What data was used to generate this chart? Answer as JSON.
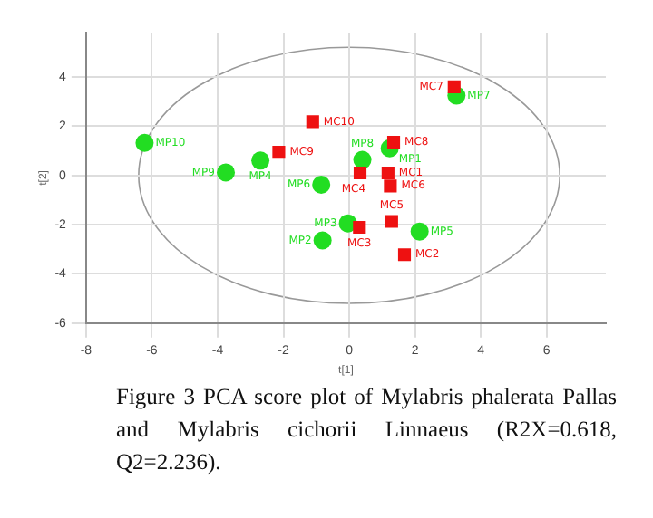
{
  "chart_data": {
    "type": "scatter",
    "xlabel": "t[1]",
    "ylabel": "t[2]",
    "xlim": [
      -8,
      7.8
    ],
    "xticks": [
      -8,
      -6,
      -4,
      -2,
      0,
      2,
      4,
      6
    ],
    "ylim": [
      -6,
      5.8
    ],
    "yticks": [
      -6,
      -4,
      -2,
      0,
      2,
      4
    ],
    "grid": true,
    "legend": false,
    "series": [
      {
        "color": "#22dd22",
        "marker": "circle",
        "x": [
          -6.22,
          -3.75,
          -2.7,
          0.4,
          1.23,
          3.26,
          -0.85,
          -0.04,
          -0.81,
          2.14
        ],
        "values": [
          1.32,
          0.12,
          0.6,
          0.63,
          1.1,
          3.24,
          -0.38,
          -1.95,
          -2.64,
          -2.28
        ]
      },
      {
        "color": "#ee1111",
        "marker": "square",
        "x": [
          3.19,
          -1.11,
          1.35,
          -2.14,
          0.33,
          1.18,
          1.25,
          1.29,
          0.31,
          1.68
        ],
        "values": [
          3.6,
          2.18,
          1.35,
          0.94,
          0.1,
          0.1,
          -0.43,
          -1.87,
          -2.11,
          -3.22
        ]
      }
    ],
    "annotations": [
      {
        "text": "MP10",
        "x": -6.22,
        "y": 1.32
      },
      {
        "text": "MP9",
        "x": -3.75,
        "y": 0.12
      },
      {
        "text": "MP4",
        "x": -2.7,
        "y": 0.6
      },
      {
        "text": "MP8",
        "x": 0.4,
        "y": 0.63
      },
      {
        "text": "MP1",
        "x": 1.23,
        "y": 1.1
      },
      {
        "text": "MP7",
        "x": 3.26,
        "y": 3.24
      },
      {
        "text": "MP6",
        "x": -0.85,
        "y": -0.38
      },
      {
        "text": "MP3",
        "x": -0.04,
        "y": -1.95
      },
      {
        "text": "MP2",
        "x": -0.81,
        "y": -2.64
      },
      {
        "text": "MP5",
        "x": 2.14,
        "y": -2.28
      },
      {
        "text": "MC7",
        "x": 3.19,
        "y": 3.6
      },
      {
        "text": "MC10",
        "x": -1.11,
        "y": 2.18
      },
      {
        "text": "MC8",
        "x": 1.35,
        "y": 1.35
      },
      {
        "text": "MC9",
        "x": -2.14,
        "y": 0.94
      },
      {
        "text": "MC4",
        "x": 0.33,
        "y": 0.1
      },
      {
        "text": "MC1",
        "x": 1.18,
        "y": 0.1
      },
      {
        "text": "MC6",
        "x": 1.25,
        "y": -0.43
      },
      {
        "text": "MC5",
        "x": 1.29,
        "y": -1.87
      },
      {
        "text": "MC3",
        "x": 0.31,
        "y": -2.11
      },
      {
        "text": "MC2",
        "x": 1.68,
        "y": -3.22
      },
      "Figure 3 PCA score plot of Mylabris phalerata Pallas and Mylabris cichorii Linnaeus (R2X=0.618, Q2=2.236)."
    ]
  }
}
